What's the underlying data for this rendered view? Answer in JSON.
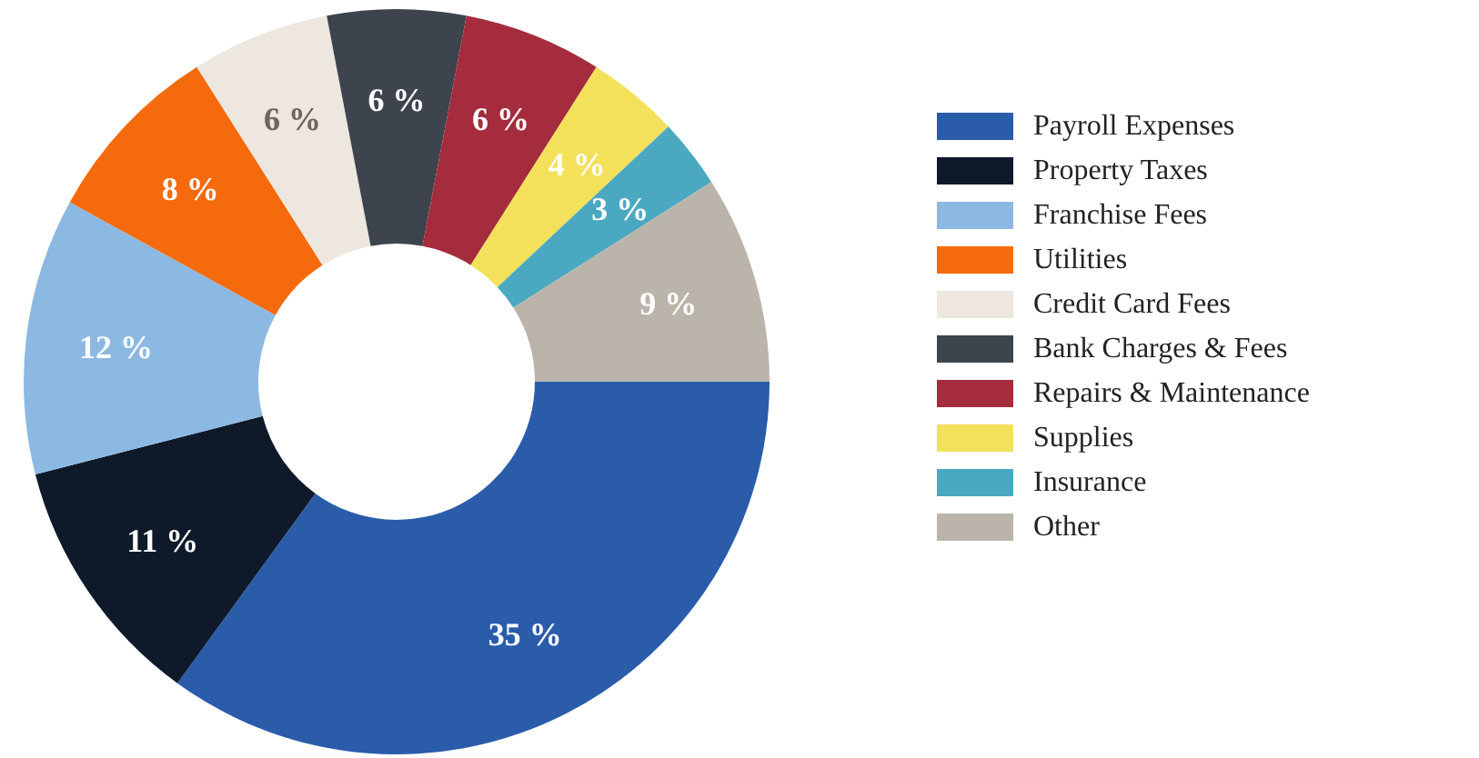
{
  "chart_data": {
    "type": "donut",
    "categories": [
      "Payroll Expenses",
      "Property Taxes",
      "Franchise Fees",
      "Utilities",
      "Credit Card Fees",
      "Bank Charges & Fees",
      "Repairs & Maintenance",
      "Supplies",
      "Insurance",
      "Other"
    ],
    "values": [
      35,
      11,
      12,
      8,
      6,
      6,
      6,
      4,
      3,
      9
    ],
    "colors": [
      "#2a5caa",
      "#0e1a2a",
      "#8cb9e2",
      "#f56a0c",
      "#ede7df",
      "#3d444d",
      "#a52c3c",
      "#f3e15c",
      "#4aa9c1",
      "#bab4aa"
    ],
    "value_labels": [
      "35 %",
      "11 %",
      "12 %",
      "8 %",
      "6 %",
      "6 %",
      "6 %",
      "4 %",
      "3 %",
      "9 %"
    ],
    "legend": "right"
  }
}
